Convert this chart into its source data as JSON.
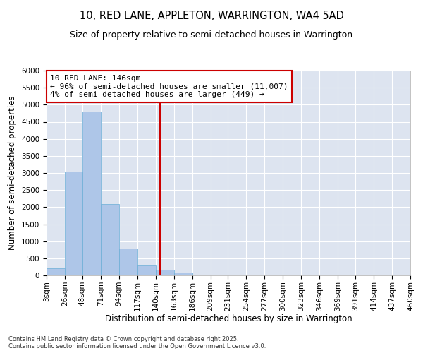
{
  "title": "10, RED LANE, APPLETON, WARRINGTON, WA4 5AD",
  "subtitle": "Size of property relative to semi-detached houses in Warrington",
  "xlabel": "Distribution of semi-detached houses by size in Warrington",
  "ylabel": "Number of semi-detached properties",
  "annotation_title": "10 RED LANE: 146sqm",
  "annotation_line1": "← 96% of semi-detached houses are smaller (11,007)",
  "annotation_line2": "4% of semi-detached houses are larger (449) →",
  "footer_line1": "Contains HM Land Registry data © Crown copyright and database right 2025.",
  "footer_line2": "Contains public sector information licensed under the Open Government Licence v3.0.",
  "bin_edges": [
    3,
    26,
    48,
    71,
    94,
    117,
    140,
    163,
    186,
    209,
    231,
    254,
    277,
    300,
    323,
    346,
    369,
    391,
    414,
    437,
    460
  ],
  "bar_heights": [
    200,
    3050,
    4800,
    2100,
    790,
    300,
    170,
    90,
    30,
    0,
    0,
    0,
    0,
    0,
    0,
    0,
    0,
    0,
    0,
    0
  ],
  "bar_color": "#aec6e8",
  "bar_edge_color": "#6aaed6",
  "vline_color": "#cc0000",
  "vline_x": 146,
  "annotation_box_color": "#cc0000",
  "background_color": "#dde4f0",
  "ylim": [
    0,
    6000
  ],
  "yticks": [
    0,
    500,
    1000,
    1500,
    2000,
    2500,
    3000,
    3500,
    4000,
    4500,
    5000,
    5500,
    6000
  ],
  "title_fontsize": 10.5,
  "subtitle_fontsize": 9,
  "axis_label_fontsize": 8.5,
  "tick_fontsize": 7.5
}
